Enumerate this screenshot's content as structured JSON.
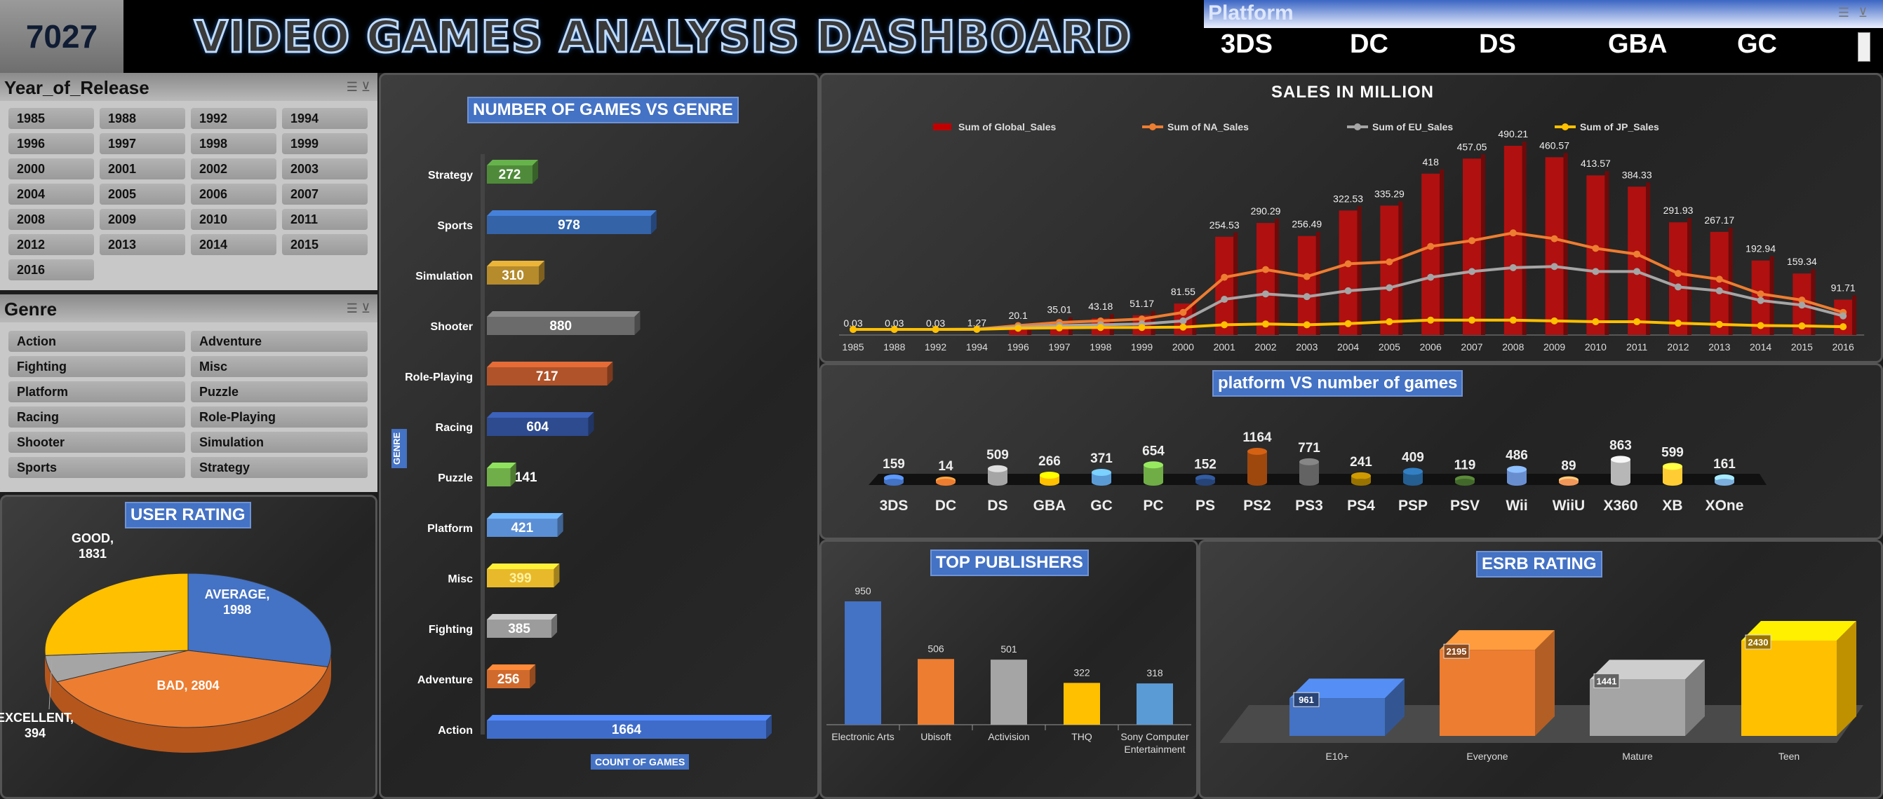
{
  "header": {
    "kpi_value": "7027",
    "title": "VIDEO GAMES ANALYSIS DASHBOARD"
  },
  "platform_slicer": {
    "title": "Platform",
    "items": [
      "3DS",
      "DC",
      "DS",
      "GBA",
      "GC"
    ]
  },
  "year_slicer": {
    "title": "Year_of_Release",
    "items": [
      "1985",
      "1988",
      "1992",
      "1994",
      "1996",
      "1997",
      "1998",
      "1999",
      "2000",
      "2001",
      "2002",
      "2003",
      "2004",
      "2005",
      "2006",
      "2007",
      "2008",
      "2009",
      "2010",
      "2011",
      "2012",
      "2013",
      "2014",
      "2015",
      "2016"
    ]
  },
  "genre_slicer": {
    "title": "Genre",
    "items": [
      "Action",
      "Adventure",
      "Fighting",
      "Misc",
      "Platform",
      "Puzzle",
      "Racing",
      "Role-Playing",
      "Shooter",
      "Simulation",
      "Sports",
      "Strategy"
    ]
  },
  "colors": {
    "blue": "#4472c4",
    "orange": "#ed7d31",
    "gray": "#a5a5a5",
    "yellow": "#ffc000",
    "red": "#c00000",
    "green": "#70ad47"
  },
  "user_rating": {
    "title": "USER RATING",
    "chart_data": {
      "type": "pie",
      "categories": [
        "AVERAGE",
        "BAD",
        "EXCELLENT",
        "GOOD"
      ],
      "values": [
        1998,
        2804,
        394,
        1831
      ],
      "labels": [
        "AVERAGE, 1998",
        "BAD, 2804",
        "EXCELLENT, 394",
        "GOOD, 1831"
      ]
    }
  },
  "genre_chart": {
    "title": "NUMBER OF GAMES VS GENRE",
    "ylabel": "GENRE",
    "xlabel": "COUNT OF GAMES",
    "chart_data": {
      "type": "bar",
      "categories": [
        "Strategy",
        "Sports",
        "Simulation",
        "Shooter",
        "Role-Playing",
        "Racing",
        "Puzzle",
        "Platform",
        "Misc",
        "Fighting",
        "Adventure",
        "Action"
      ],
      "values": [
        272,
        978,
        310,
        880,
        717,
        604,
        141,
        421,
        399,
        385,
        256,
        1664
      ],
      "colors": [
        "#4f8a3a",
        "#3563a8",
        "#b58b2c",
        "#6b6b6b",
        "#b0532a",
        "#2e4b8f",
        "#6fae48",
        "#5a8fd6",
        "#e8b92a",
        "#9c9c9c",
        "#d06a2c",
        "#3f6cc8"
      ]
    }
  },
  "sales_chart": {
    "title": "SALES IN MILLION",
    "legend": [
      "Sum of Global_Sales",
      "Sum of NA_Sales",
      "Sum of EU_Sales",
      "Sum of JP_Sales"
    ],
    "chart_data": {
      "type": "bar",
      "categories": [
        "1985",
        "1988",
        "1992",
        "1994",
        "1996",
        "1997",
        "1998",
        "1999",
        "2000",
        "2001",
        "2002",
        "2003",
        "2004",
        "2005",
        "2006",
        "2007",
        "2008",
        "2009",
        "2010",
        "2011",
        "2012",
        "2013",
        "2014",
        "2015",
        "2016"
      ],
      "series": [
        {
          "name": "Sum of Global_Sales",
          "values": [
            0.03,
            0.03,
            0.03,
            1.27,
            20.1,
            35.01,
            43.18,
            51.17,
            81.55,
            254.53,
            290.29,
            256.49,
            322.53,
            335.29,
            418,
            457.05,
            490.21,
            460.57,
            413.57,
            384.33,
            291.93,
            267.17,
            192.94,
            159.34,
            91.71
          ]
        },
        {
          "name": "Sum of NA_Sales",
          "values": [
            0,
            0,
            0,
            0.6,
            10,
            18,
            22,
            27,
            44,
            135,
            155,
            137,
            170,
            175,
            215,
            230,
            250,
            235,
            210,
            195,
            145,
            130,
            92,
            76,
            44
          ]
        },
        {
          "name": "Sum of EU_Sales",
          "values": [
            0,
            0,
            0,
            0.4,
            6,
            10,
            12,
            14,
            22,
            78,
            92,
            85,
            100,
            108,
            135,
            150,
            160,
            163,
            150,
            150,
            110,
            100,
            75,
            63,
            35
          ]
        },
        {
          "name": "Sum of JP_Sales",
          "values": [
            0.03,
            0.03,
            0.03,
            0.2,
            3,
            4,
            5,
            5,
            6,
            12,
            14,
            12,
            15,
            20,
            24,
            24,
            24,
            22,
            20,
            20,
            16,
            13,
            10,
            9,
            7
          ]
        }
      ]
    }
  },
  "platform_chart": {
    "title": "platform VS number of games",
    "chart_data": {
      "type": "bar",
      "categories": [
        "3DS",
        "DC",
        "DS",
        "GBA",
        "GC",
        "PC",
        "PS",
        "PS2",
        "PS3",
        "PS4",
        "PSP",
        "PSV",
        "Wii",
        "WiiU",
        "X360",
        "XB",
        "XOne"
      ],
      "values": [
        159,
        14,
        509,
        266,
        371,
        654,
        152,
        1164,
        771,
        241,
        409,
        119,
        486,
        89,
        863,
        599,
        161
      ],
      "colors": [
        "#4472c4",
        "#ed7d31",
        "#a5a5a5",
        "#ffc000",
        "#5b9bd5",
        "#70ad47",
        "#264478",
        "#9e480e",
        "#636363",
        "#997300",
        "#255e91",
        "#43682b",
        "#698ed0",
        "#f1975a",
        "#b7b7b7",
        "#ffcd33",
        "#7cafdd"
      ]
    }
  },
  "publishers_chart": {
    "title": "TOP PUBLISHERS",
    "chart_data": {
      "type": "bar",
      "categories": [
        "Electronic Arts",
        "Ubisoft",
        "Activision",
        "THQ",
        "Sony Computer Entertainment"
      ],
      "values": [
        950,
        506,
        501,
        322,
        318
      ],
      "colors": [
        "#4472c4",
        "#ed7d31",
        "#a5a5a5",
        "#ffc000",
        "#5b9bd5"
      ]
    }
  },
  "esrb_chart": {
    "title": "ESRB RATING",
    "chart_data": {
      "type": "bar",
      "categories": [
        "E10+",
        "Everyone",
        "Mature",
        "Teen"
      ],
      "values": [
        961,
        2195,
        1441,
        2430
      ],
      "colors": [
        "#4472c4",
        "#ed7d31",
        "#a5a5a5",
        "#ffc000"
      ]
    }
  }
}
